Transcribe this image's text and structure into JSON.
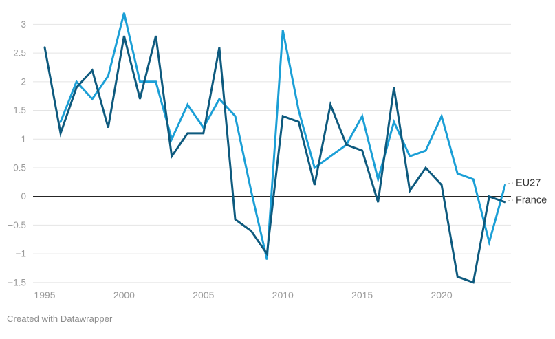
{
  "chart_data": {
    "type": "line",
    "title": "",
    "xlabel": "",
    "ylabel": "",
    "grid": true,
    "zero_line": true,
    "ylim": [
      -1.5,
      3.25
    ],
    "xlim": [
      1995,
      2024
    ],
    "legend_position": "direct-right",
    "yticks": [
      {
        "value": 3,
        "label": "3"
      },
      {
        "value": 2.5,
        "label": "2.5"
      },
      {
        "value": 2,
        "label": "2"
      },
      {
        "value": 1.5,
        "label": "1.5"
      },
      {
        "value": 1,
        "label": "1"
      },
      {
        "value": 0.5,
        "label": "0.5"
      },
      {
        "value": 0,
        "label": "0"
      },
      {
        "value": -0.5,
        "label": "−0.5"
      },
      {
        "value": -1,
        "label": "−1"
      },
      {
        "value": -1.5,
        "label": "−1.5"
      }
    ],
    "xticks": [
      {
        "value": 1995,
        "label": "1995"
      },
      {
        "value": 2000,
        "label": "2000"
      },
      {
        "value": 2005,
        "label": "2005"
      },
      {
        "value": 2010,
        "label": "2010"
      },
      {
        "value": 2015,
        "label": "2015"
      },
      {
        "value": 2020,
        "label": "2020"
      }
    ],
    "series": [
      {
        "name": "EU27",
        "label": "EU27",
        "color": "#1b9fd6",
        "years": [
          1996,
          1997,
          1998,
          1999,
          2000,
          2001,
          2002,
          2003,
          2004,
          2005,
          2006,
          2007,
          2008,
          2009,
          2010,
          2011,
          2012,
          2013,
          2014,
          2015,
          2016,
          2017,
          2018,
          2019,
          2020,
          2021,
          2022,
          2023,
          2024
        ],
        "values": [
          1.3,
          2.0,
          1.7,
          2.1,
          3.2,
          2.0,
          2.0,
          1.0,
          1.6,
          1.2,
          1.7,
          1.4,
          0.1,
          -1.1,
          2.9,
          1.5,
          0.5,
          0.7,
          0.9,
          1.4,
          0.3,
          1.3,
          0.7,
          0.8,
          1.4,
          0.4,
          0.3,
          -0.8,
          0.2
        ]
      },
      {
        "name": "France",
        "label": "France",
        "color": "#0e5a7e",
        "years": [
          1995,
          1996,
          1997,
          1998,
          1999,
          2000,
          2001,
          2002,
          2003,
          2004,
          2005,
          2006,
          2007,
          2008,
          2009,
          2010,
          2011,
          2012,
          2013,
          2014,
          2015,
          2016,
          2017,
          2018,
          2019,
          2020,
          2021,
          2022,
          2023,
          2024
        ],
        "values": [
          2.6,
          1.1,
          1.9,
          2.2,
          1.2,
          2.8,
          1.7,
          2.8,
          0.7,
          1.1,
          1.1,
          2.6,
          -0.4,
          -0.6,
          -1.0,
          1.4,
          1.3,
          0.2,
          1.6,
          0.9,
          0.8,
          -0.1,
          1.9,
          0.1,
          0.5,
          0.2,
          -1.4,
          -1.5,
          0.0,
          -0.1
        ]
      }
    ],
    "colors": {
      "grid": "#e4e4e4",
      "zero_line": "#262626",
      "tick_text": "#9b9b9b",
      "direct_label_text": "#333333",
      "label_connector": "#a3a3a3",
      "background": "#ffffff"
    }
  },
  "footer": {
    "credit": "Created with Datawrapper"
  }
}
